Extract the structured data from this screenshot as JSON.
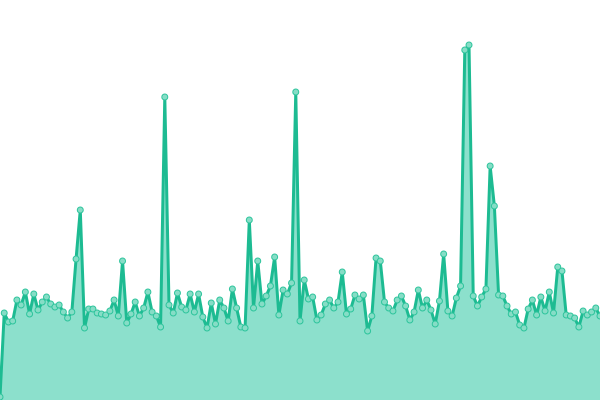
{
  "chart_data": {
    "type": "area",
    "title": "",
    "xlabel": "",
    "ylabel": "",
    "ylim": [
      0,
      400
    ],
    "grid": false,
    "legend": "none",
    "colors": {
      "line": "#1dbb92",
      "fill": "#8ce0cc",
      "marker_fill": "#86ddc6",
      "marker_stroke": "#2ec49c"
    },
    "values": [
      3,
      87,
      78,
      79,
      100,
      95,
      108,
      86,
      106,
      90,
      98,
      103,
      96,
      93,
      95,
      88,
      82,
      88,
      141,
      190,
      72,
      91,
      91,
      87,
      86,
      85,
      89,
      100,
      84,
      139,
      77,
      86,
      98,
      84,
      92,
      108,
      88,
      84,
      73,
      303,
      95,
      87,
      107,
      93,
      90,
      106,
      88,
      106,
      83,
      72,
      97,
      76,
      100,
      92,
      79,
      111,
      92,
      73,
      72,
      180,
      92,
      139,
      96,
      104,
      114,
      143,
      85,
      110,
      106,
      117,
      308,
      79,
      120,
      101,
      103,
      80,
      85,
      96,
      100,
      92,
      98,
      128,
      86,
      91,
      105,
      101,
      105,
      69,
      84,
      142,
      139,
      98,
      92,
      89,
      100,
      104,
      94,
      80,
      88,
      110,
      92,
      100,
      90,
      76,
      99,
      146,
      89,
      84,
      102,
      114,
      350,
      355,
      104,
      94,
      103,
      111,
      234,
      194,
      105,
      104,
      94,
      86,
      88,
      75,
      72,
      91,
      100,
      85,
      103,
      89,
      108,
      87,
      133,
      129,
      85,
      84,
      82,
      73,
      89,
      85,
      88,
      92,
      84
    ]
  }
}
